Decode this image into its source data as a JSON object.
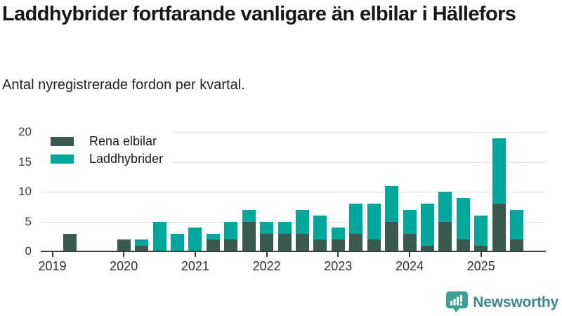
{
  "page": {
    "title": "Laddhybrider fortfarande vanligare än elbilar i Hällefors",
    "subtitle": "Antal nyregistrerade fordon per kvartal."
  },
  "footer": {
    "brand": "Newsworthy",
    "icon": "newsworthy-bubble-bar-chart-icon",
    "icon_color": "#3f9e96",
    "text_color": "#3c8a82"
  },
  "colors": {
    "rena_elbilar": "#3a594f",
    "laddhybrider": "#00a89b",
    "gridline": "#e1e1e1",
    "axis": "#3e3e3e",
    "title_text": "#181818"
  },
  "chart_data": {
    "type": "bar",
    "stacked": true,
    "title": "Laddhybrider fortfarande vanligare än elbilar i Hällefors",
    "subtitle": "Antal nyregistrerade fordon per kvartal.",
    "x": [
      "2019 Q1",
      "2019 Q2",
      "2019 Q3",
      "2019 Q4",
      "2020 Q1",
      "2020 Q2",
      "2020 Q3",
      "2020 Q4",
      "2021 Q1",
      "2021 Q2",
      "2021 Q3",
      "2021 Q4",
      "2022 Q1",
      "2022 Q2",
      "2022 Q3",
      "2022 Q4",
      "2023 Q1",
      "2023 Q2",
      "2023 Q3",
      "2023 Q4",
      "2024 Q1",
      "2024 Q2",
      "2024 Q3",
      "2024 Q4",
      "2025 Q1",
      "2025 Q2",
      "2025 Q3"
    ],
    "series": [
      {
        "name": "Rena elbilar",
        "color": "#3a594f",
        "values": [
          0,
          3,
          0,
          0,
          2,
          1,
          0,
          0,
          0,
          2,
          2,
          5,
          3,
          3,
          3,
          2,
          2,
          3,
          2,
          5,
          3,
          1,
          5,
          2,
          1,
          8,
          2
        ]
      },
      {
        "name": "Laddhybrider",
        "color": "#00a89b",
        "values": [
          0,
          0,
          0,
          0,
          0,
          1,
          5,
          3,
          4,
          1,
          3,
          2,
          2,
          2,
          4,
          4,
          2,
          5,
          6,
          6,
          4,
          7,
          5,
          7,
          5,
          11,
          5
        ]
      }
    ],
    "ylim": [
      0,
      20
    ],
    "yticks": [
      0,
      5,
      10,
      15,
      20
    ],
    "xticks": [
      "2019",
      "2020",
      "2021",
      "2022",
      "2023",
      "2024",
      "2025"
    ],
    "grid": true,
    "legend_position": "inside-top-left"
  }
}
